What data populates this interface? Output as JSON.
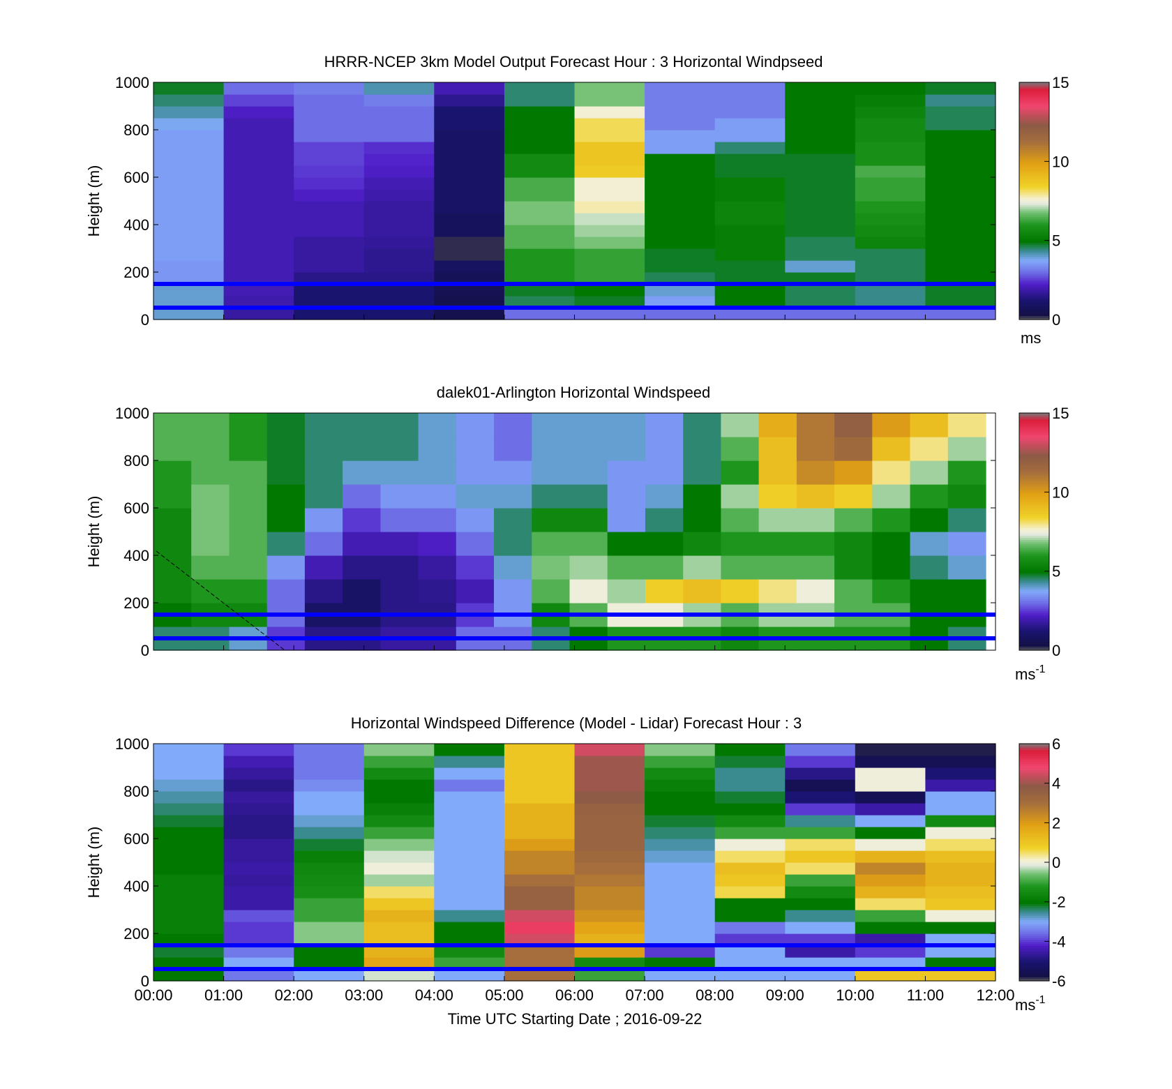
{
  "chart_data": [
    {
      "type": "heatmap",
      "title": "HRRR-NCEP 3km Model Output   Forecast Hour : 3 Horizontal Windpseed",
      "ylabel": "Height (m)",
      "ylim": [
        0,
        1000
      ],
      "yticks": [
        "0",
        "200",
        "400",
        "600",
        "800",
        "1000"
      ],
      "x_hours": [
        0,
        1,
        2,
        3,
        4,
        5,
        6,
        7,
        8,
        9,
        10,
        11,
        12
      ],
      "reference_lines_m": [
        150,
        50
      ],
      "colorbar": {
        "ticks": [
          "0",
          "5",
          "10",
          "15"
        ],
        "range": [
          0,
          15
        ],
        "unit": "ms"
      },
      "heights_m": [
        25,
        75,
        125,
        175,
        225,
        275,
        325,
        375,
        425,
        475,
        525,
        575,
        625,
        675,
        725,
        775,
        825,
        875,
        925,
        975
      ],
      "values_by_hour": [
        [
          4,
          4,
          4,
          3.5,
          3.5,
          3.6,
          3.6,
          3.6,
          3.6,
          3.6,
          3.6,
          3.6,
          3.6,
          3.6,
          3.6,
          3.6,
          3.8,
          4.2,
          4.5,
          4.8
        ],
        [
          1.8,
          1.9,
          2,
          2,
          2,
          2,
          2,
          2,
          2,
          2,
          2,
          2,
          2,
          2,
          2,
          2,
          2,
          2.2,
          2.6,
          3
        ],
        [
          1.2,
          1.2,
          1.2,
          1.5,
          1.8,
          1.8,
          1.8,
          2,
          2,
          2,
          2.2,
          2.4,
          2.5,
          2.6,
          2.6,
          3,
          3,
          3,
          3,
          3.2
        ],
        [
          1.2,
          1.2,
          1.2,
          1.5,
          1.6,
          1.6,
          1.7,
          1.8,
          1.8,
          1.8,
          1.9,
          2,
          2.2,
          2.3,
          2.4,
          3,
          3,
          3,
          3.2,
          4.2
        ],
        [
          0.5,
          0.5,
          0.6,
          0.7,
          0.9,
          0.2,
          0.2,
          0.8,
          0.8,
          1,
          1,
          1,
          1,
          1,
          1,
          1,
          1.2,
          1.2,
          1.6,
          2
        ],
        [
          3,
          4.6,
          4.8,
          6,
          6,
          6,
          6.5,
          6.5,
          6.8,
          6.8,
          6.4,
          6.4,
          5.6,
          5.6,
          5,
          5,
          5,
          5,
          4.5,
          4.5
        ],
        [
          3,
          4.8,
          5,
          6.2,
          6.2,
          6.2,
          6.8,
          7,
          7.2,
          7.8,
          7.6,
          7.6,
          8.6,
          8.8,
          8.8,
          8.2,
          8.2,
          7.6,
          6.8,
          6.8
        ],
        [
          3,
          3.6,
          4,
          4.6,
          4.8,
          4.8,
          5,
          5,
          5,
          5,
          5,
          5,
          5,
          5,
          3.6,
          3.6,
          3.2,
          3.2,
          3.2,
          3.2
        ],
        [
          3,
          5,
          5,
          4.8,
          4.8,
          5.2,
          5.2,
          5.2,
          5.4,
          5.4,
          5.2,
          5.2,
          4.8,
          4.8,
          4.5,
          3.6,
          3.6,
          3.2,
          3.2,
          3.2
        ],
        [
          3,
          4.6,
          4.6,
          4.8,
          4,
          4.6,
          4.6,
          4.8,
          4.8,
          4.8,
          4.8,
          4.8,
          4.8,
          4.8,
          5,
          5,
          5,
          5,
          5,
          5
        ],
        [
          3,
          4.4,
          4.4,
          4.6,
          4.6,
          4.6,
          5.4,
          5.6,
          5.8,
          6,
          6.2,
          6.2,
          6.4,
          5.8,
          5.8,
          5.6,
          5.6,
          5.4,
          5.2,
          5
        ],
        [
          3,
          4.8,
          4.8,
          5,
          5,
          5,
          5,
          5,
          5,
          5,
          5,
          5,
          5,
          5,
          5,
          5,
          4.6,
          4.6,
          4.4,
          4.8
        ]
      ]
    },
    {
      "type": "heatmap",
      "title": "dalek01-Arlington  Horizontal Windspeed",
      "ylabel": "Height (m)",
      "ylim": [
        0,
        1000
      ],
      "yticks": [
        "0",
        "200",
        "400",
        "600",
        "800",
        "1000"
      ],
      "x_hours": [
        0,
        1,
        2,
        3,
        4,
        5,
        6,
        7,
        8,
        9,
        10,
        11,
        12
      ],
      "reference_lines_m": [
        150,
        50
      ],
      "colorbar": {
        "ticks": [
          "0",
          "5",
          "10",
          "15"
        ],
        "range": [
          0,
          15
        ],
        "unit": "ms",
        "unit_exponent": "-1"
      },
      "heights_m": [
        50,
        150,
        250,
        350,
        450,
        550,
        650,
        750,
        850,
        950
      ],
      "values_by_half_hour": [
        [
          4.5,
          5,
          5.5,
          5.5,
          5.5,
          5.5,
          6,
          6,
          6.5,
          6.5
        ],
        [
          4.5,
          5.5,
          6,
          6.5,
          6.8,
          6.8,
          6.8,
          6.5,
          6.5,
          6.5
        ],
        [
          4,
          5.5,
          6,
          6.5,
          6.5,
          6.5,
          6.5,
          6.5,
          6,
          6
        ],
        [
          2.5,
          3,
          3,
          3.5,
          4.5,
          5,
          5,
          4.8,
          4.8,
          4.8
        ],
        [
          1.5,
          1,
          1.5,
          2,
          3,
          3.5,
          4.5,
          4.5,
          4.5,
          4.5
        ],
        [
          1.5,
          1,
          1,
          1.5,
          2,
          2.5,
          3,
          4,
          4.5,
          4.5
        ],
        [
          1.8,
          1.5,
          1.5,
          1.5,
          2,
          3,
          3.5,
          4,
          4.5,
          4.5
        ],
        [
          1.8,
          1.5,
          1.6,
          1.8,
          2.2,
          3,
          3.5,
          4,
          4,
          4
        ],
        [
          3,
          2.5,
          2,
          2.5,
          3,
          3.5,
          4,
          3.5,
          3.5,
          3.5
        ],
        [
          3,
          3.5,
          3.5,
          4,
          4.5,
          4.5,
          4,
          3.5,
          3,
          3
        ],
        [
          4.5,
          5.5,
          6.5,
          6.8,
          6.5,
          5.5,
          4.5,
          4,
          4,
          4
        ],
        [
          5,
          6.5,
          7.5,
          7,
          6.5,
          5.5,
          4.5,
          4,
          4,
          4
        ],
        [
          6,
          7.5,
          7,
          6.5,
          5,
          3.5,
          3.5,
          3.5,
          4,
          4
        ],
        [
          6,
          7.5,
          8.5,
          6.5,
          5,
          4.5,
          4,
          3.5,
          3.5,
          3.5
        ],
        [
          6,
          7,
          9,
          7,
          5.5,
          5,
          5,
          4.5,
          4.5,
          4.5
        ],
        [
          5.5,
          6.5,
          8.5,
          6.5,
          6,
          6.5,
          7,
          6,
          6.5,
          7
        ],
        [
          6,
          7,
          8,
          6.5,
          6,
          7,
          8.5,
          9,
          9,
          9.5
        ],
        [
          6,
          7,
          7.5,
          6.5,
          6,
          7,
          9,
          10.5,
          11,
          11
        ],
        [
          6,
          6.5,
          6.5,
          5.5,
          5.5,
          6.5,
          8.5,
          10,
          11.5,
          12
        ],
        [
          6,
          6.5,
          6,
          5,
          5,
          6,
          7,
          8,
          9,
          10
        ],
        [
          5,
          5,
          5,
          4.5,
          4,
          5,
          6,
          7,
          8,
          9
        ],
        [
          4.5,
          5,
          5,
          4,
          3.5,
          4.5,
          5.5,
          6,
          7,
          8
        ]
      ]
    },
    {
      "type": "heatmap",
      "title": "Horizontal Windspeed Difference (Model - Lidar) Forecast Hour : 3",
      "ylabel": "Height (m)",
      "ylim": [
        0,
        1000
      ],
      "yticks": [
        "0",
        "200",
        "400",
        "600",
        "800",
        "1000"
      ],
      "xticks": [
        "00:00",
        "01:00",
        "02:00",
        "03:00",
        "04:00",
        "05:00",
        "06:00",
        "07:00",
        "08:00",
        "09:00",
        "10:00",
        "11:00",
        "12:00"
      ],
      "xlabel": "Time UTC  Starting Date ; 2016-09-22",
      "reference_lines_m": [
        150,
        50
      ],
      "colorbar": {
        "ticks": [
          "-6",
          "-4",
          "-2",
          "0",
          "2",
          "4",
          "6"
        ],
        "range": [
          -6,
          6
        ],
        "unit": "ms",
        "unit_exponent": "-1"
      },
      "heights_m": [
        25,
        75,
        125,
        175,
        225,
        275,
        325,
        375,
        425,
        475,
        525,
        575,
        625,
        675,
        725,
        775,
        825,
        875,
        925,
        975
      ],
      "values_by_hour": [
        [
          -2,
          -2,
          -2.2,
          -2,
          -1.8,
          -1.8,
          -1.8,
          -1.8,
          -1.8,
          -2,
          -2,
          -2,
          -2,
          -2.2,
          -2.4,
          -2.6,
          -2.8,
          -3,
          -3,
          -3
        ],
        [
          -3.5,
          -3,
          -3.5,
          -4,
          -4,
          -3.8,
          -4.5,
          -4.5,
          -4.6,
          -4.5,
          -4.6,
          -4.6,
          -4.8,
          -4.8,
          -4.7,
          -4.6,
          -4.8,
          -4.6,
          -4.4,
          -4
        ],
        [
          -3,
          -2,
          -2,
          -0.5,
          -0.5,
          -1,
          -1,
          -1.4,
          -1.5,
          -1.6,
          -1.8,
          -2.2,
          -2.5,
          -2.8,
          -3,
          -3,
          -3.3,
          -3.5,
          -3.5,
          -3.5
        ],
        [
          -0.2,
          1.8,
          1.5,
          1.2,
          1.2,
          1.5,
          1,
          0.5,
          -0.4,
          0,
          -0.2,
          -0.5,
          -1,
          -1.5,
          -1.8,
          -2,
          -2,
          -1.5,
          -1,
          -0.5
        ],
        [
          -3,
          -1,
          -1.5,
          -2,
          -2,
          -2.5,
          -3,
          -3,
          -3,
          -3,
          -3,
          -3,
          -3,
          -3,
          -3,
          -3,
          -3.5,
          -3,
          -2.5,
          -2
        ],
        [
          3,
          3,
          3,
          4.5,
          5,
          4.5,
          3.5,
          3.5,
          3,
          2.5,
          2.5,
          2,
          1.5,
          1.5,
          1.5,
          1,
          1,
          1,
          1,
          1
        ],
        [
          -1,
          -1.5,
          2,
          1.5,
          1.8,
          2.2,
          2.5,
          2.5,
          2.8,
          3,
          3.2,
          3.4,
          3.4,
          3.4,
          3.5,
          3.8,
          4,
          4,
          4,
          4.5
        ],
        [
          -3,
          -2,
          -4,
          -3,
          -3,
          -3,
          -3,
          -3,
          -3,
          -3,
          -2.8,
          -2.6,
          -2.4,
          -2.2,
          -2,
          -2,
          -1.8,
          -1.5,
          -1,
          -0.5
        ],
        [
          -3,
          -3,
          -3,
          -4,
          -3.5,
          -2,
          -2,
          0.6,
          1,
          1.2,
          0.5,
          0,
          -1,
          -1.5,
          -2,
          -2.2,
          -2.5,
          -2.5,
          -2.2,
          -2
        ],
        [
          -3,
          -3,
          -4.5,
          -4,
          -3,
          -2.5,
          -2,
          -1.5,
          -1,
          0.5,
          1,
          0.5,
          -1,
          -2.5,
          -4,
          -5,
          -5.5,
          -4.8,
          -4,
          -3.5
        ],
        [
          1,
          -3,
          -4,
          -4.5,
          -2,
          -1,
          0.5,
          1.5,
          2,
          2.5,
          1.5,
          0,
          -2,
          -3,
          -4.5,
          -5.5,
          0,
          0,
          -5.5,
          -5.8
        ],
        [
          1,
          -2,
          -3,
          -3,
          -2,
          0,
          1,
          1.2,
          1.5,
          1.5,
          1.2,
          0.5,
          0,
          -1.5,
          -3,
          -3,
          -4.5,
          -5,
          -5.5,
          -5.8
        ]
      ]
    }
  ]
}
